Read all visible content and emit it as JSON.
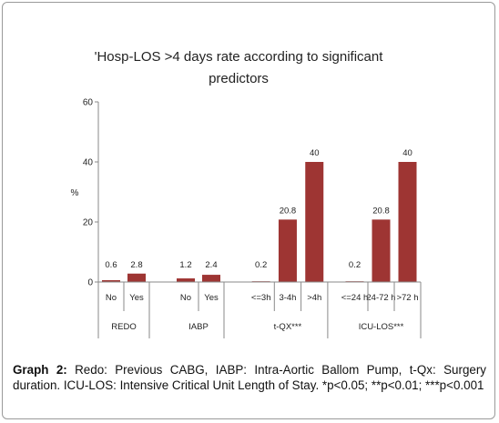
{
  "chart_data": {
    "type": "bar",
    "title_lines": [
      "'Hosp-LOS >4 days rate according to significant",
      "predictors"
    ],
    "ylabel": "%",
    "ylim": [
      0,
      60
    ],
    "yticks": [
      "0",
      "20",
      "40",
      "60"
    ],
    "bar_color": "#9e3533",
    "groups": [
      {
        "name": "REDO",
        "categories": [
          "No",
          "Yes"
        ],
        "values": [
          0.6,
          2.8
        ],
        "labels": [
          "0.6",
          "2.8"
        ]
      },
      {
        "name": "IABP",
        "categories": [
          "No",
          "Yes"
        ],
        "values": [
          1.2,
          2.4
        ],
        "labels": [
          "1.2",
          "2.4"
        ]
      },
      {
        "name": "t-QX***",
        "categories": [
          "<=3h",
          "3-4h",
          ">4h"
        ],
        "values": [
          0.2,
          20.8,
          40
        ],
        "labels": [
          "0.2",
          "20.8",
          "40"
        ]
      },
      {
        "name": "ICU-LOS***",
        "categories": [
          "<=24 h",
          "24-72 h",
          ">72 h"
        ],
        "values": [
          0.2,
          20.8,
          40
        ],
        "labels": [
          "0.2",
          "20.8",
          "40"
        ]
      }
    ]
  },
  "caption": {
    "label": "Graph 2:",
    "text": " Redo: Previous CABG, IABP: Intra-Aortic Ballom Pump, t-Qx: Surgery duration. ICU-LOS: Intensive Critical Unit Length of Stay. *p<0.05; **p<0.01;      ***p<0.001"
  }
}
